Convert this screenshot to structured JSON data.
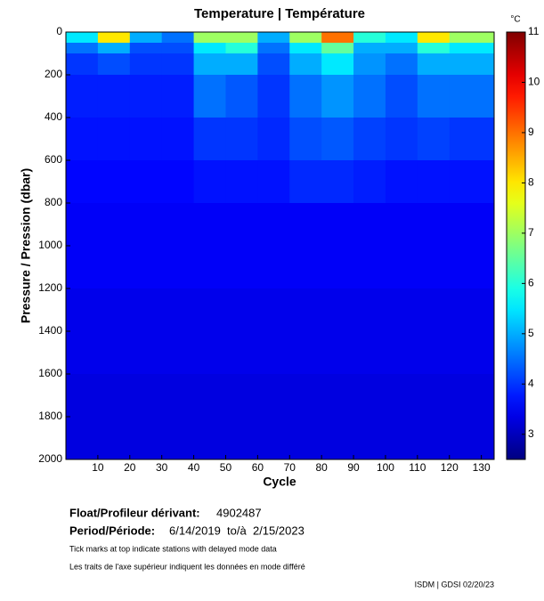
{
  "chart_data": {
    "type": "heatmap",
    "title": "Temperature | Température",
    "x_label": "Cycle",
    "y_label": "Pressure / Pression (dbar)",
    "colorbar_label": "°C",
    "colormap": "jet",
    "xbins": [
      0,
      10,
      20,
      30,
      40,
      50,
      60,
      70,
      80,
      90,
      100,
      110,
      120,
      134
    ],
    "ybins": [
      0,
      50,
      100,
      200,
      400,
      600,
      800,
      1200,
      1600,
      2000
    ],
    "values": [
      [
        5.5,
        8,
        5,
        4.5,
        7,
        7,
        5,
        7,
        9,
        6,
        5.5,
        8,
        7
      ],
      [
        4.5,
        5,
        4.2,
        4.2,
        5.5,
        6,
        4.5,
        5.5,
        6.5,
        5,
        5,
        6,
        5.5
      ],
      [
        4,
        4.2,
        4,
        4,
        5,
        5,
        4.2,
        5,
        5.5,
        4.8,
        4.5,
        5,
        5
      ],
      [
        3.8,
        3.8,
        3.8,
        3.8,
        4.5,
        4.3,
        4,
        4.5,
        4.8,
        4.5,
        4.2,
        4.5,
        4.5
      ],
      [
        3.7,
        3.7,
        3.7,
        3.7,
        4,
        4,
        3.9,
        4.2,
        4.3,
        4.1,
        4,
        4.1,
        4
      ],
      [
        3.6,
        3.6,
        3.6,
        3.6,
        3.7,
        3.7,
        3.7,
        3.9,
        3.9,
        3.8,
        3.7,
        3.7,
        3.7
      ],
      [
        3.5,
        3.5,
        3.5,
        3.5,
        3.5,
        3.5,
        3.5,
        3.5,
        3.5,
        3.5,
        3.5,
        3.5,
        3.5
      ],
      [
        3.4,
        3.4,
        3.4,
        3.4,
        3.4,
        3.4,
        3.4,
        3.4,
        3.4,
        3.4,
        3.4,
        3.4,
        3.4
      ],
      [
        3.3,
        3.3,
        3.3,
        3.3,
        3.3,
        3.3,
        3.3,
        3.3,
        3.3,
        3.3,
        3.3,
        3.3,
        3.3
      ]
    ],
    "xlim": [
      0,
      134
    ],
    "xticks": [
      10,
      20,
      30,
      40,
      50,
      60,
      70,
      80,
      90,
      100,
      110,
      120,
      130
    ],
    "ylim": [
      0,
      2000
    ],
    "invert_y": true,
    "yticks": [
      0,
      200,
      400,
      600,
      800,
      1000,
      1200,
      1400,
      1600,
      1800,
      2000
    ],
    "clim": [
      2.5,
      11
    ],
    "cticks": [
      3,
      4,
      5,
      6,
      7,
      8,
      9,
      10,
      11
    ],
    "float_label": "Float/Profileur dérivant:",
    "float_id": "4902487",
    "period_label": "Period/Période:",
    "period": "6/14/2019  to/à  2/15/2023",
    "notes": [
      "Tick marks at top indicate stations with delayed mode data",
      "Les traits de l'axe supérieur indiquent les données en mode différé"
    ],
    "credit": "ISDM | GDSI 02/20/23"
  }
}
